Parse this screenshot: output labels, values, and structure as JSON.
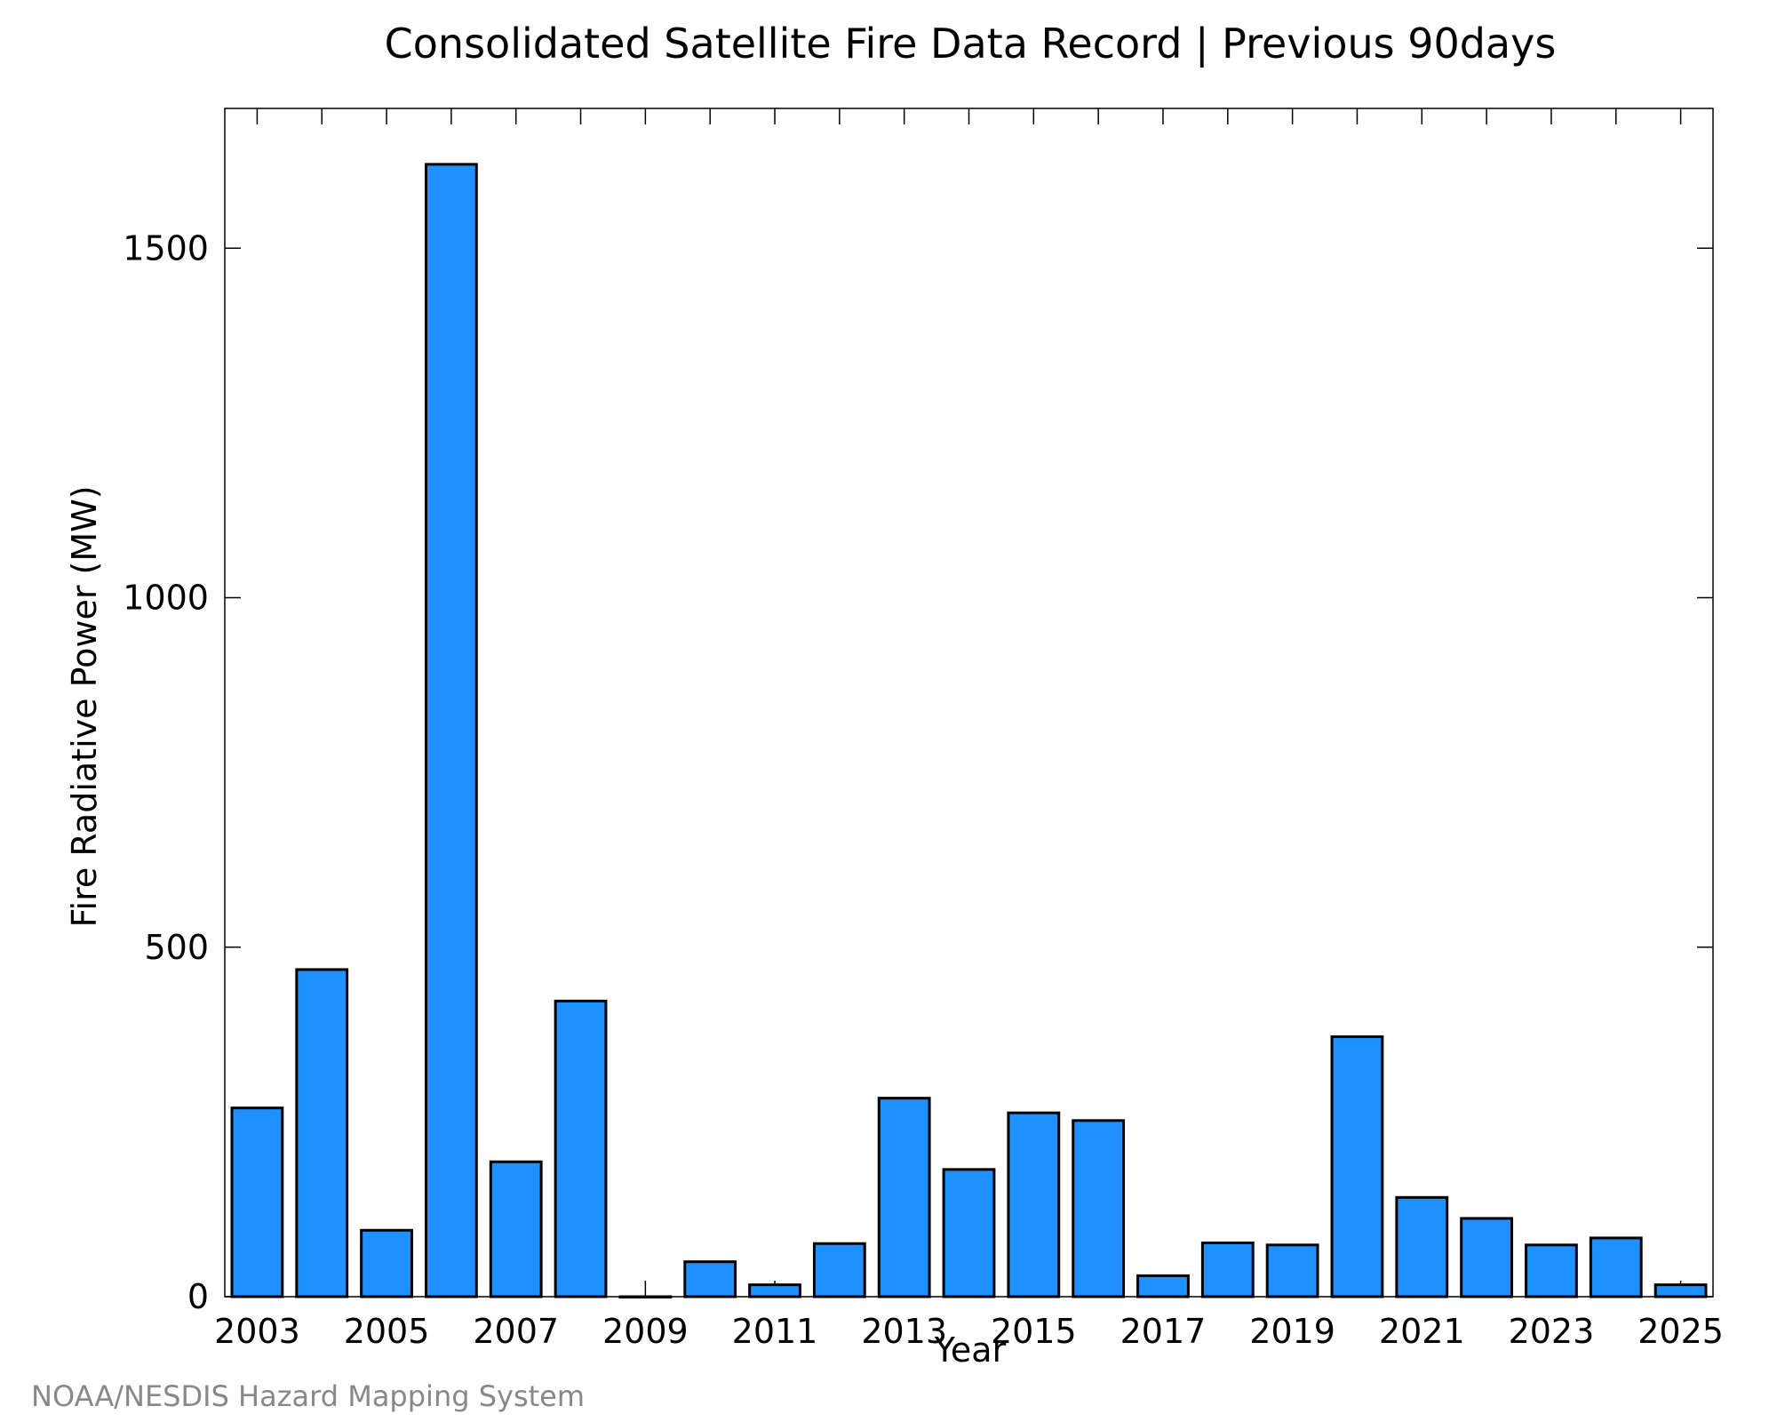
{
  "credit": "NOAA/NESDIS Hazard Mapping System",
  "colors": {
    "bar_fill": "#1e90ff",
    "bar_stroke": "#000000",
    "credit_text": "#888888"
  },
  "chart_data": {
    "type": "bar",
    "title": "Consolidated Satellite Fire Data Record | Previous 90days",
    "xlabel": "Year",
    "ylabel": "Fire Radiative Power (MW)",
    "categories": [
      "2003",
      "2004",
      "2005",
      "2006",
      "2007",
      "2008",
      "2009",
      "2010",
      "2011",
      "2012",
      "2013",
      "2014",
      "2015",
      "2016",
      "2017",
      "2018",
      "2019",
      "2020",
      "2021",
      "2022",
      "2023",
      "2024",
      "2025"
    ],
    "values": [
      270,
      468,
      95,
      1620,
      193,
      423,
      0,
      50,
      17,
      76,
      284,
      182,
      263,
      252,
      30,
      77,
      74,
      372,
      142,
      112,
      74,
      84,
      17
    ],
    "x_tick_labels": [
      "2003",
      "2005",
      "2007",
      "2009",
      "2011",
      "2013",
      "2015",
      "2017",
      "2019",
      "2021",
      "2023",
      "2025"
    ],
    "y_ticks": [
      0,
      500,
      1000,
      1500
    ],
    "y_tick_labels": [
      "0",
      "500",
      "1000",
      "1500"
    ],
    "ylim": [
      0,
      1700
    ],
    "grid": false,
    "legend": "none"
  }
}
